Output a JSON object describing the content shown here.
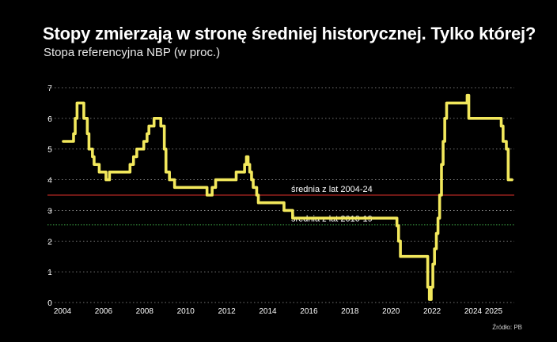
{
  "chart_data": {
    "type": "line",
    "title": "Stopy zmierzają w stronę średniej historycznej. Tylko której?",
    "subtitle": "Stopa referencyjna NBP (w proc.)",
    "source": "Źródło: PB",
    "xlabel": "",
    "ylabel": "",
    "xlim": [
      2004,
      2025.85
    ],
    "ylim": [
      0,
      7
    ],
    "yticks": [
      "0",
      "1",
      "2",
      "3",
      "4",
      "5",
      "6",
      "7"
    ],
    "xticks": [
      "2004",
      "2006",
      "2008",
      "2010",
      "2012",
      "2014",
      "2016",
      "2018",
      "2020",
      "2022",
      "2024",
      "2025"
    ],
    "xtick_values": [
      2004,
      2006,
      2008,
      2010,
      2012,
      2014,
      2016,
      2018,
      2020,
      2022,
      2024,
      2025
    ],
    "grid": "horizontal dotted",
    "series": [
      {
        "name": "Stopa referencyjna NBP",
        "color": "#f2e85c",
        "x": [
          2004.0,
          2004.5,
          2004.5,
          2004.58,
          2004.58,
          2004.67,
          2004.67,
          2005.0,
          2005.0,
          2005.17,
          2005.17,
          2005.25,
          2005.25,
          2005.42,
          2005.42,
          2005.5,
          2005.5,
          2005.75,
          2005.75,
          2006.08,
          2006.08,
          2006.25,
          2006.25,
          2007.25,
          2007.25,
          2007.42,
          2007.42,
          2007.58,
          2007.58,
          2007.92,
          2007.92,
          2008.08,
          2008.08,
          2008.17,
          2008.17,
          2008.42,
          2008.42,
          2008.75,
          2008.75,
          2008.92,
          2008.92,
          2009.0,
          2009.0,
          2009.17,
          2009.17,
          2009.42,
          2009.42,
          2011.0,
          2011.0,
          2011.25,
          2011.25,
          2011.42,
          2011.42,
          2012.42,
          2012.42,
          2012.83,
          2012.83,
          2012.92,
          2012.92,
          2013.0,
          2013.0,
          2013.08,
          2013.08,
          2013.17,
          2013.17,
          2013.25,
          2013.25,
          2013.42,
          2013.42,
          2013.5,
          2013.5,
          2014.75,
          2014.75,
          2015.17,
          2015.17,
          2020.25,
          2020.25,
          2020.33,
          2020.33,
          2020.42,
          2020.42,
          2021.75,
          2021.75,
          2021.83,
          2021.83,
          2021.92,
          2021.92,
          2022.0,
          2022.0,
          2022.08,
          2022.08,
          2022.17,
          2022.17,
          2022.25,
          2022.25,
          2022.33,
          2022.33,
          2022.42,
          2022.42,
          2022.5,
          2022.5,
          2022.58,
          2022.58,
          2022.67,
          2022.67,
          2023.67,
          2023.67,
          2023.75,
          2023.75,
          2025.33,
          2025.33,
          2025.42,
          2025.42,
          2025.58,
          2025.58,
          2025.67,
          2025.67,
          2025.85
        ],
        "y": [
          5.25,
          5.25,
          5.5,
          5.5,
          6.0,
          6.0,
          6.5,
          6.5,
          6.0,
          6.0,
          5.5,
          5.5,
          5.0,
          5.0,
          4.75,
          4.75,
          4.5,
          4.5,
          4.25,
          4.25,
          4.0,
          4.0,
          4.25,
          4.25,
          4.5,
          4.5,
          4.75,
          4.75,
          5.0,
          5.0,
          5.25,
          5.25,
          5.5,
          5.5,
          5.75,
          5.75,
          6.0,
          6.0,
          5.75,
          5.75,
          5.0,
          5.0,
          4.25,
          4.25,
          4.0,
          4.0,
          3.75,
          3.75,
          3.5,
          3.5,
          3.75,
          3.75,
          4.0,
          4.0,
          4.25,
          4.25,
          4.5,
          4.5,
          4.75,
          4.75,
          4.5,
          4.5,
          4.25,
          4.25,
          4.0,
          4.0,
          3.75,
          3.75,
          3.5,
          3.5,
          3.25,
          3.25,
          3.0,
          3.0,
          2.75,
          2.75,
          2.5,
          2.5,
          2.0,
          2.0,
          1.5,
          1.5,
          0.5,
          0.5,
          0.1,
          0.1,
          0.5,
          0.5,
          1.25,
          1.25,
          1.75,
          1.75,
          2.25,
          2.25,
          2.75,
          2.75,
          3.5,
          3.5,
          4.5,
          4.5,
          5.25,
          5.25,
          6.0,
          6.0,
          6.5,
          6.5,
          6.75,
          6.75,
          6.0,
          6.0,
          5.75,
          5.75,
          5.25,
          5.25,
          5.0,
          5.0,
          4.0,
          4.0
        ]
      }
    ],
    "reference_lines": [
      {
        "label": "średnia z lat 2004-24",
        "value": 3.5,
        "color": "#e0302a",
        "style": "solid"
      },
      {
        "label": "średnia z lat 2010-19",
        "value": 2.53,
        "color": "#3fae49",
        "style": "dotted"
      }
    ]
  }
}
